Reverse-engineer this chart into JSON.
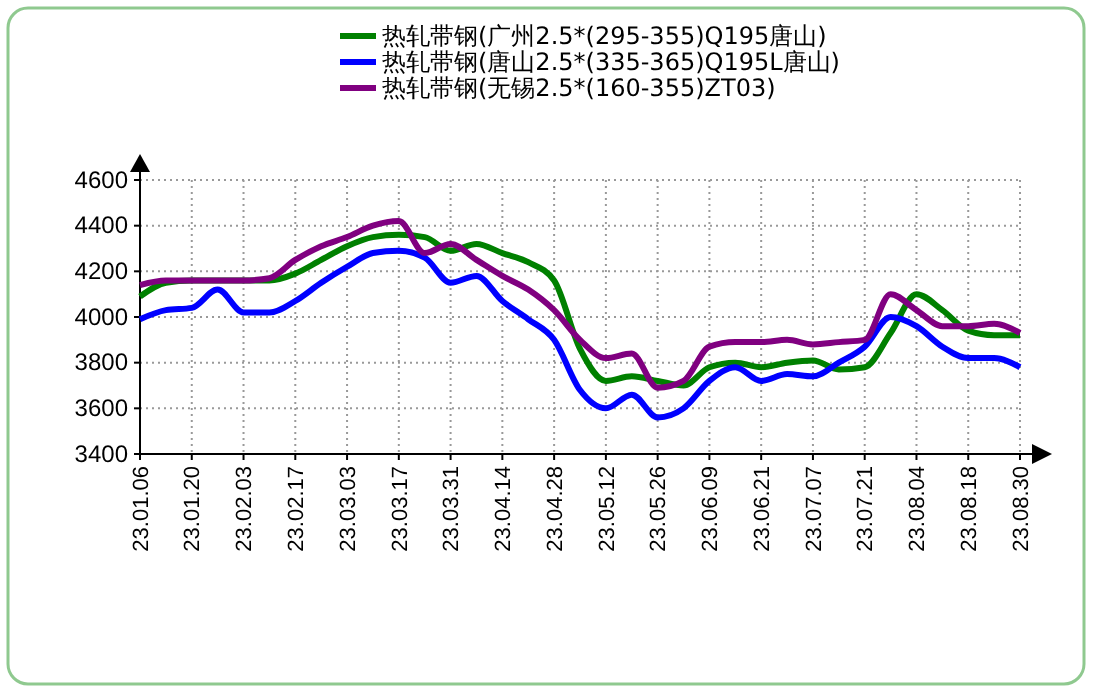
{
  "chart_data": {
    "type": "line",
    "categories": [
      "23.01.06",
      null,
      "23.01.20",
      null,
      "23.02.03",
      null,
      "23.02.17",
      null,
      "23.03.03",
      null,
      "23.03.17",
      null,
      "23.03.31",
      null,
      "23.04.14",
      null,
      "23.04.28",
      null,
      "23.05.12",
      null,
      "23.05.26",
      null,
      "23.06.09",
      null,
      "23.06.21",
      null,
      "23.07.07",
      null,
      "23.07.21",
      null,
      "23.08.04",
      null,
      "23.08.18",
      null,
      "23.08.30"
    ],
    "series": [
      {
        "name": "热轧带钢(广州2.5*(295-355)Q195唐山)",
        "color": "#008000",
        "values": [
          4090,
          4150,
          4160,
          4160,
          4160,
          4160,
          4190,
          4250,
          4310,
          4350,
          4360,
          4350,
          4290,
          4320,
          4280,
          4240,
          4160,
          3860,
          3720,
          3740,
          3720,
          3700,
          3780,
          3800,
          3780,
          3800,
          3810,
          3770,
          3780,
          3930,
          4100,
          4030,
          3940,
          3920,
          3920
        ]
      },
      {
        "name": "热轧带钢(唐山2.5*(335-365)Q195L唐山)",
        "color": "#0000ff",
        "values": [
          3990,
          4030,
          4040,
          4120,
          4020,
          4020,
          4070,
          4150,
          4220,
          4280,
          4290,
          4260,
          4150,
          4180,
          4070,
          3990,
          3900,
          3680,
          3600,
          3660,
          3560,
          3600,
          3720,
          3780,
          3720,
          3750,
          3740,
          3800,
          3870,
          4000,
          3960,
          3870,
          3820,
          3820,
          3780
        ]
      },
      {
        "name": "热轧带钢(无锡2.5*(160-355)ZT03)",
        "color": "#800080",
        "values": [
          4140,
          4160,
          4160,
          4160,
          4160,
          4170,
          4250,
          4310,
          4350,
          4400,
          4420,
          4280,
          4320,
          4250,
          4180,
          4120,
          4030,
          3900,
          3820,
          3840,
          3690,
          3720,
          3870,
          3890,
          3890,
          3900,
          3880,
          3890,
          3900,
          4100,
          4030,
          3960,
          3960,
          3970,
          3930
        ]
      }
    ],
    "ylim": [
      3400,
      4600
    ],
    "yticks": [
      3400,
      3600,
      3800,
      4000,
      4200,
      4400,
      4600
    ],
    "grid": true,
    "legend": "top",
    "line_style": "solid",
    "marker": "none"
  }
}
